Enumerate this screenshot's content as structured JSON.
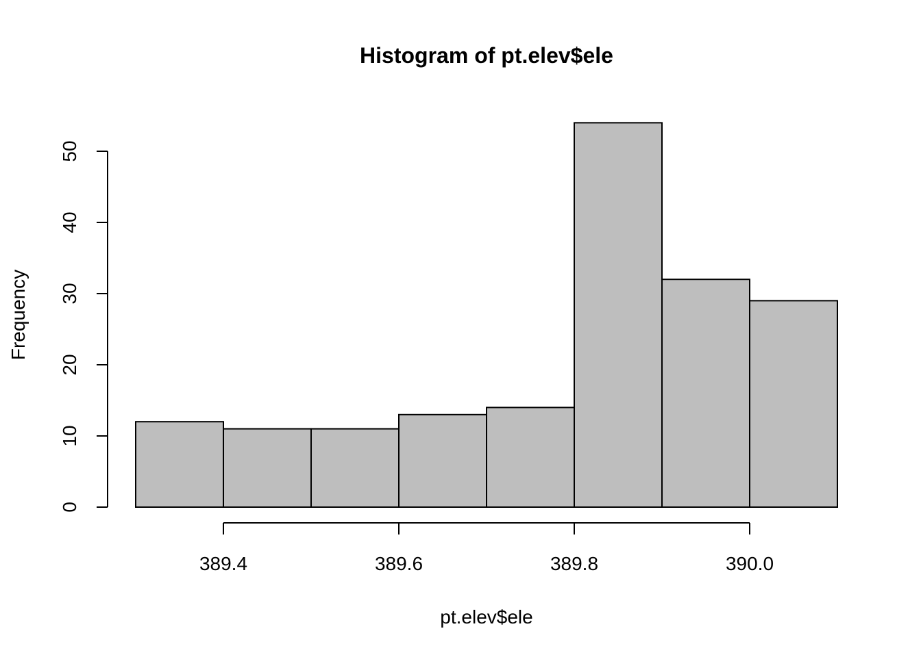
{
  "chart_data": {
    "type": "bar",
    "title": "Histogram of pt.elev$ele",
    "xlabel": "pt.elev$ele",
    "ylabel": "Frequency",
    "bins": [
      {
        "from": 389.3,
        "to": 389.4,
        "count": 12
      },
      {
        "from": 389.4,
        "to": 389.5,
        "count": 11
      },
      {
        "from": 389.5,
        "to": 389.6,
        "count": 11
      },
      {
        "from": 389.6,
        "to": 389.7,
        "count": 13
      },
      {
        "from": 389.7,
        "to": 389.8,
        "count": 14
      },
      {
        "from": 389.8,
        "to": 389.9,
        "count": 54
      },
      {
        "from": 389.9,
        "to": 390.0,
        "count": 32
      },
      {
        "from": 390.0,
        "to": 390.1,
        "count": 29
      }
    ],
    "xticks": [
      "389.4",
      "389.6",
      "389.8",
      "390.0"
    ],
    "yticks": [
      "0",
      "10",
      "20",
      "30",
      "40",
      "50"
    ],
    "xlim": [
      389.3,
      390.1
    ],
    "ylim": [
      0,
      54
    ],
    "bar_fill": "#bebebe",
    "bar_stroke": "#000000",
    "grid": false,
    "legend": "none"
  }
}
